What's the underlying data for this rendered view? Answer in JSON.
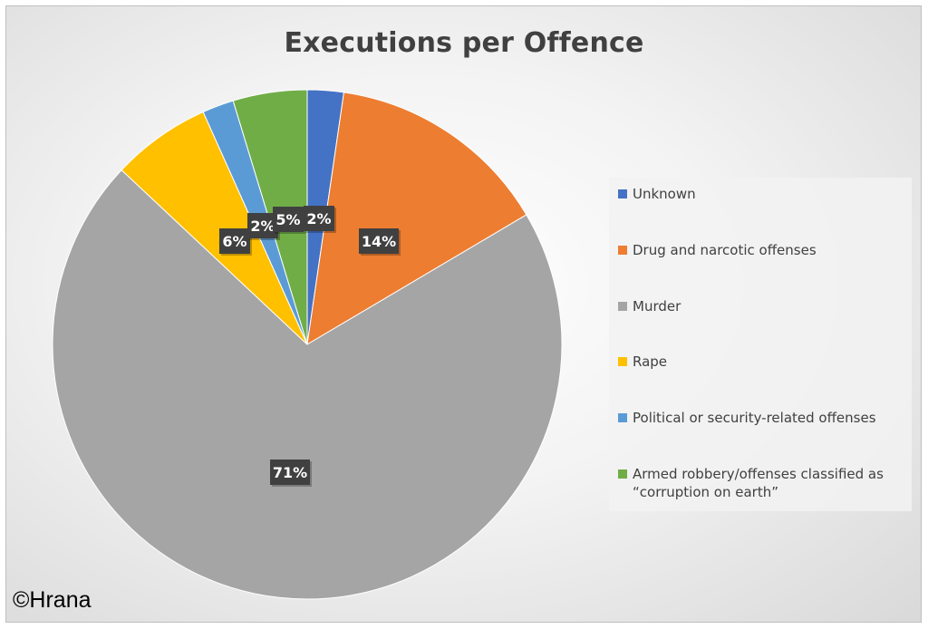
{
  "chart_data": {
    "type": "pie",
    "title": "Executions per Offence",
    "slices": [
      {
        "label": "Unknown",
        "value": 2.3,
        "display": "2%",
        "color": "#4472C4"
      },
      {
        "label": "Drug and narcotic offenses",
        "value": 14.2,
        "display": "14%",
        "color": "#ED7D31"
      },
      {
        "label": "Murder",
        "value": 70.5,
        "display": "71%",
        "color": "#A5A5A5"
      },
      {
        "label": "Rape",
        "value": 6.3,
        "display": "6%",
        "color": "#FFC000"
      },
      {
        "label": "Political or security-related offenses",
        "value": 2.0,
        "display": "2%",
        "color": "#5B9BD5"
      },
      {
        "label": "Armed robbery/offenses classified as “corruption on earth”",
        "value": 4.7,
        "display": "5%",
        "color": "#70AD47"
      }
    ],
    "legend_position": "right",
    "label_background": "#404040"
  },
  "watermark": "©Hrana"
}
